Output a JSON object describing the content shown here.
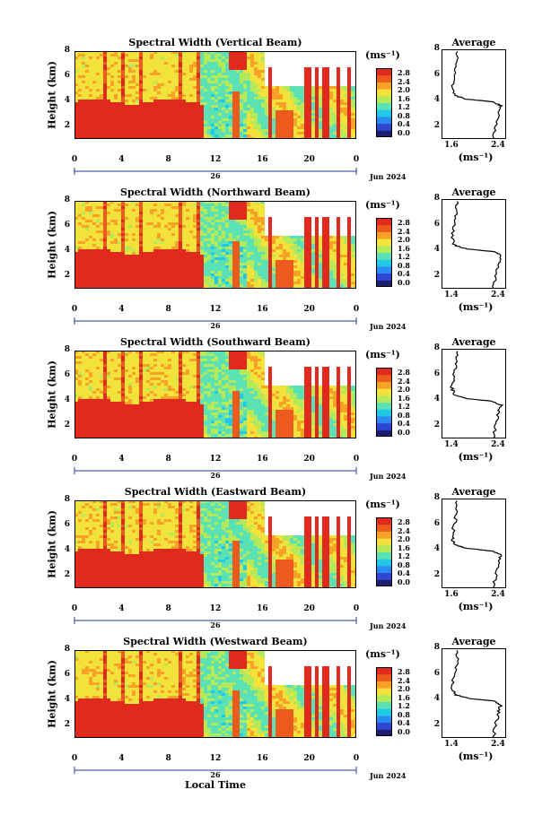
{
  "panels": [
    {
      "title": "Spectral Width (Vertical Beam)",
      "avg_title": "Average",
      "avg_xticks": [
        "1.6",
        "2.4"
      ],
      "seed": 1
    },
    {
      "title": "Spectral Width (Northward Beam)",
      "avg_title": "Average",
      "avg_xticks": [
        "1.4",
        "2.4"
      ],
      "seed": 2
    },
    {
      "title": "Spectral Width (Southward Beam)",
      "avg_title": "Average",
      "avg_xticks": [
        "1.4",
        "2.4"
      ],
      "seed": 3
    },
    {
      "title": "Spectral Width (Eastward Beam)",
      "avg_title": "Average",
      "avg_xticks": [
        "1.6",
        "2.4"
      ],
      "seed": 4
    },
    {
      "title": "Spectral Width (Westward Beam)",
      "avg_title": "Average",
      "avg_xticks": [
        "1.4",
        "2.4"
      ],
      "seed": 5
    }
  ],
  "ylabel": "Height (km)",
  "yticks": [
    "2",
    "4",
    "6",
    "8"
  ],
  "xticks": [
    "0",
    "4",
    "8",
    "12",
    "16",
    "20",
    "0"
  ],
  "day_label": "26",
  "date_label": "Jun 2024",
  "colorbar_unit": "(ms⁻¹)",
  "colorbar_ticks": [
    "2.8",
    "2.4",
    "2.0",
    "1.6",
    "1.2",
    "0.8",
    "0.4",
    "0.0"
  ],
  "avg_yticks": [
    "2",
    "4",
    "6",
    "8"
  ],
  "avg_unit": "(ms⁻¹)",
  "xlabel": "Local Time",
  "chart_data": {
    "type": "heatmap",
    "variable": "Spectral Width",
    "unit": "ms⁻¹",
    "x_range_hours": [
      0,
      24
    ],
    "y_range_km": [
      1,
      8
    ],
    "color_range": [
      0,
      2.8
    ],
    "colormap": [
      "#1e1c6e",
      "#2f46d2",
      "#2a8cf0",
      "#22c8e8",
      "#5ae2b4",
      "#b4ea5a",
      "#f4e23c",
      "#f7a126",
      "#ec5a1e",
      "#e02a1e"
    ],
    "beams": [
      "Vertical",
      "Northward",
      "Southward",
      "Eastward",
      "Westward"
    ],
    "average_profile": {
      "height_km": [
        1,
        2,
        3,
        3.6,
        3.9,
        4.1,
        4.4,
        5,
        6,
        7,
        8
      ],
      "width": [
        2.3,
        2.35,
        2.4,
        2.45,
        2.3,
        1.8,
        1.55,
        1.5,
        1.55,
        1.6,
        1.6
      ]
    }
  }
}
